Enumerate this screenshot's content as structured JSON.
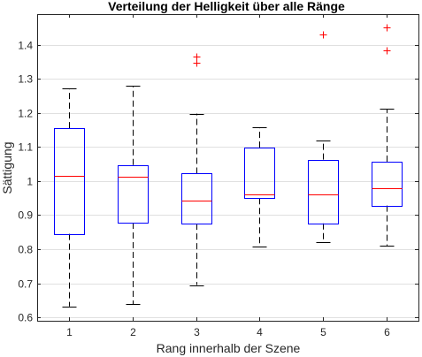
{
  "chart_data": {
    "type": "boxplot",
    "title": "Verteilung der Helligkeit über alle Ränge",
    "xlabel": "Rang innerhalb der Szene",
    "ylabel": "Sättigung",
    "ylim": [
      0.59,
      1.49
    ],
    "yticks": [
      0.6,
      0.7,
      0.8,
      0.9,
      1,
      1.1,
      1.2,
      1.3,
      1.4
    ],
    "ytick_labels": [
      "0.6",
      "0.7",
      "0.8",
      "0.9",
      "1",
      "1.1",
      "1.2",
      "1.3",
      "1.4"
    ],
    "categories": [
      "1",
      "2",
      "3",
      "4",
      "5",
      "6"
    ],
    "grid": "horizontal",
    "boxes": [
      {
        "category": "1",
        "whisker_low": 0.632,
        "q1": 0.845,
        "median": 1.016,
        "q3": 1.155,
        "whisker_high": 1.271,
        "outliers": []
      },
      {
        "category": "2",
        "whisker_low": 0.638,
        "q1": 0.878,
        "median": 1.012,
        "q3": 1.047,
        "whisker_high": 1.28,
        "outliers": []
      },
      {
        "category": "3",
        "whisker_low": 0.695,
        "q1": 0.875,
        "median": 0.943,
        "q3": 1.022,
        "whisker_high": 1.198,
        "outliers": [
          1.348,
          1.365
        ]
      },
      {
        "category": "4",
        "whisker_low": 0.808,
        "q1": 0.95,
        "median": 0.96,
        "q3": 1.098,
        "whisker_high": 1.157,
        "outliers": []
      },
      {
        "category": "5",
        "whisker_low": 0.82,
        "q1": 0.876,
        "median": 0.96,
        "q3": 1.063,
        "whisker_high": 1.12,
        "outliers": [
          1.43
        ]
      },
      {
        "category": "6",
        "whisker_low": 0.81,
        "q1": 0.928,
        "median": 0.98,
        "q3": 1.057,
        "whisker_high": 1.212,
        "outliers": [
          1.383,
          1.45
        ]
      }
    ],
    "colors": {
      "box": "#0000ff",
      "median": "#ff0000",
      "whisker": "#000000",
      "outlier": "#ff0000",
      "grid": "#e0e0e0"
    }
  }
}
